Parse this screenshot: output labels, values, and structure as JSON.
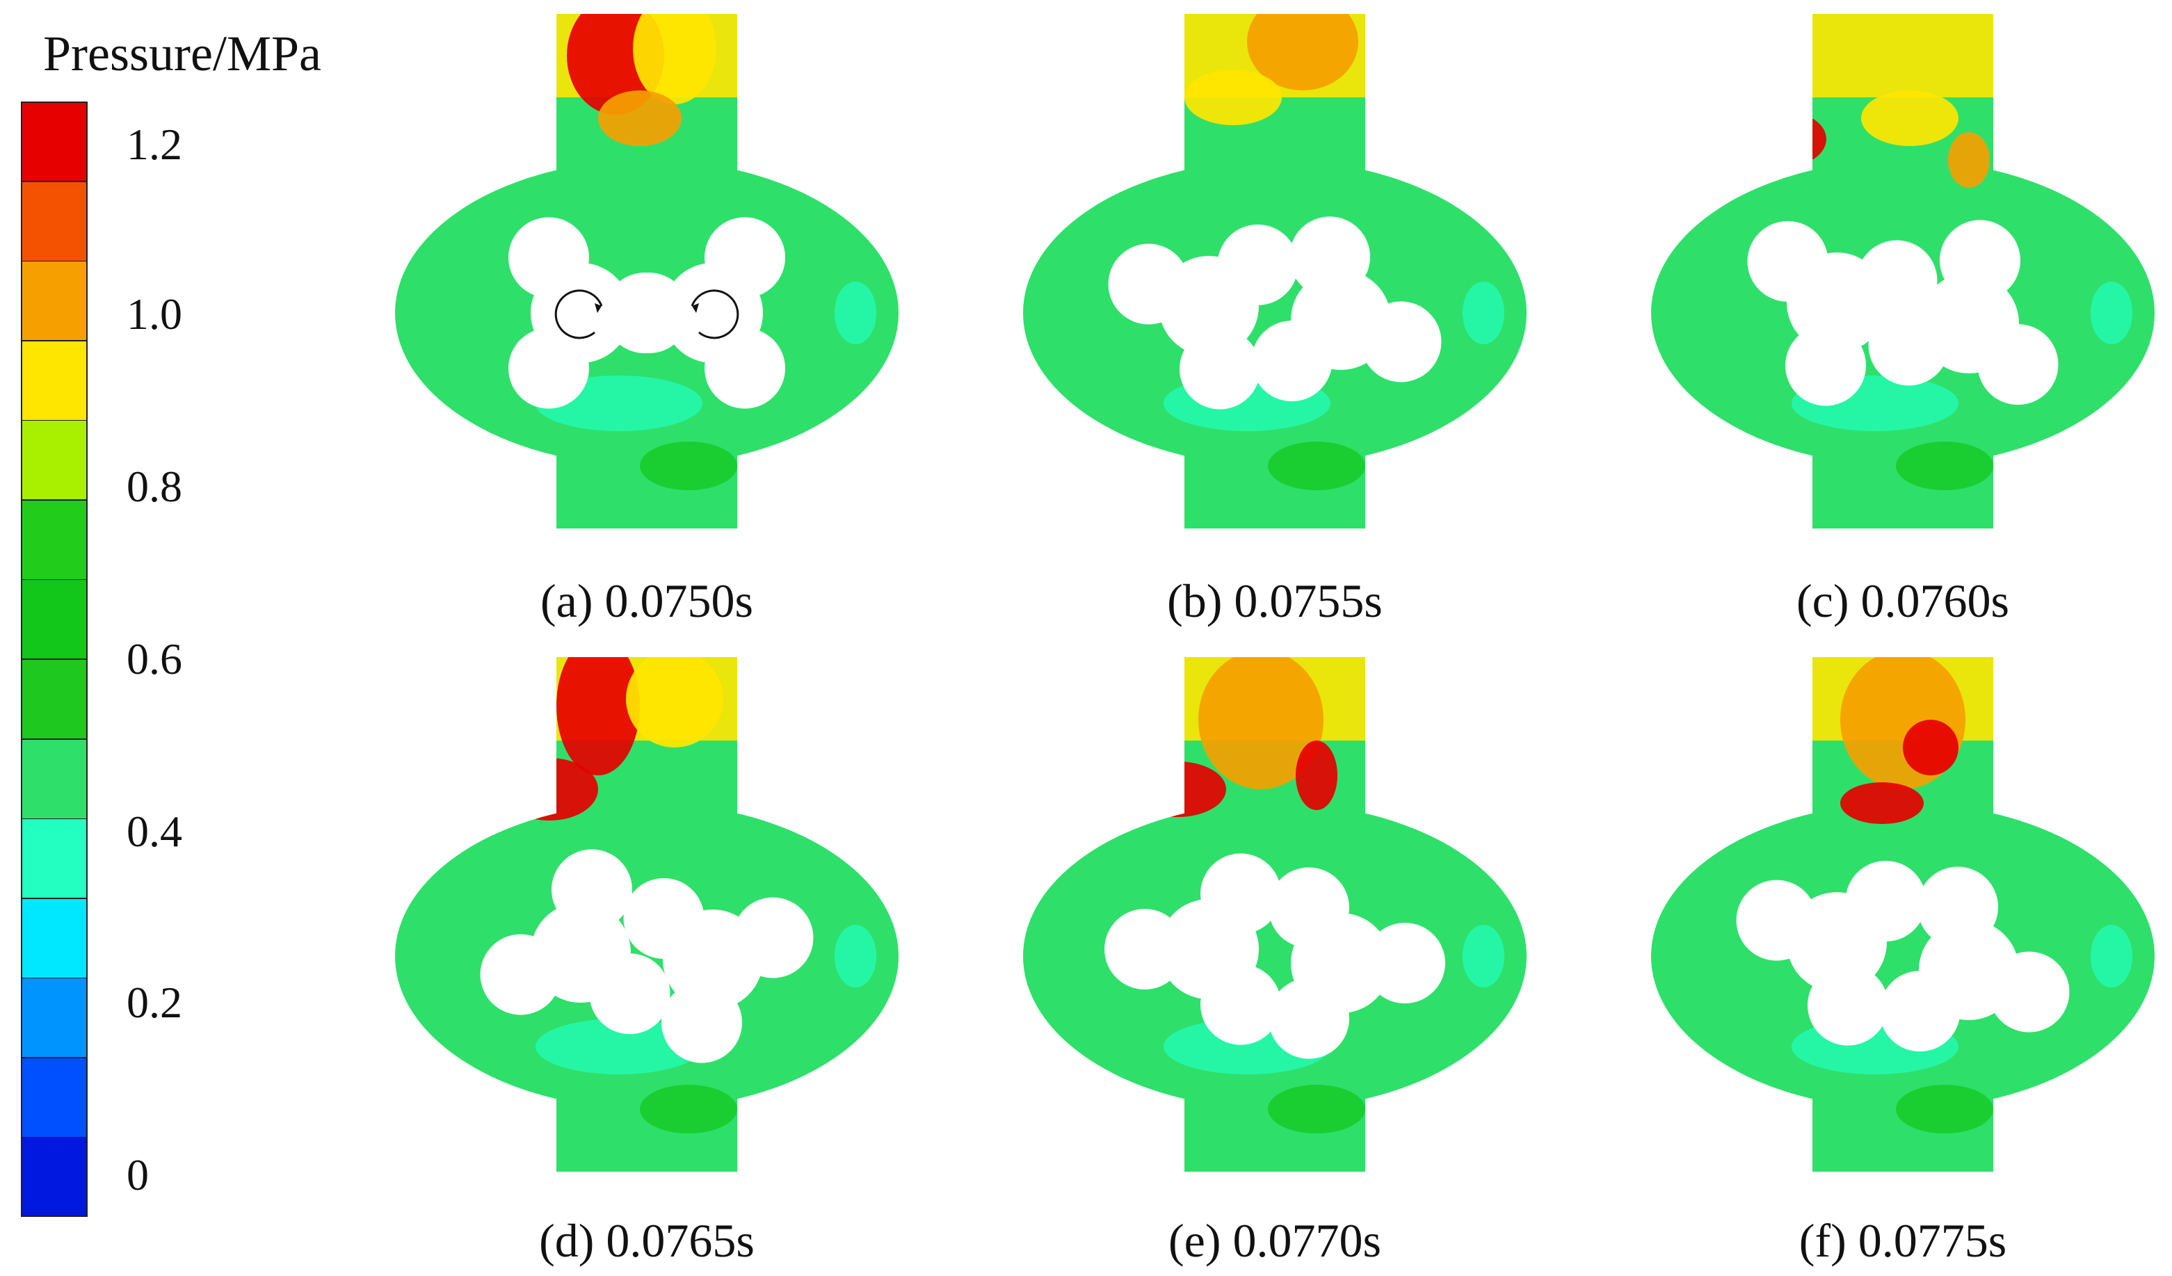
{
  "legend": {
    "title": "Pressure/MPa",
    "ticks": [
      "1.2",
      "1.0",
      "0.8",
      "0.6",
      "0.4",
      "0.2",
      "0"
    ],
    "colors": [
      "#e60000",
      "#f55200",
      "#f5a000",
      "#ffe600",
      "#a8f000",
      "#22cc1a",
      "#12c61a",
      "#1ec81e",
      "#2ee06a",
      "#22ffc0",
      "#00e8ff",
      "#0094ff",
      "#0050ff",
      "#0018e0"
    ]
  },
  "panels": [
    {
      "id": "a",
      "caption": "(a) 0.0750s"
    },
    {
      "id": "b",
      "caption": "(b) 0.0755s"
    },
    {
      "id": "c",
      "caption": "(c) 0.0760s"
    },
    {
      "id": "d",
      "caption": "(d) 0.0765s"
    },
    {
      "id": "e",
      "caption": "(e) 0.0770s"
    },
    {
      "id": "f",
      "caption": "(f) 0.0775s"
    }
  ],
  "field_colors": {
    "base": "#2ee06a",
    "outlet_high": "#e60000",
    "outlet_mid": "#f5a000",
    "outlet_low": "#ffe600",
    "inlet": "#22ffc0",
    "rotor": "#ffffff"
  }
}
